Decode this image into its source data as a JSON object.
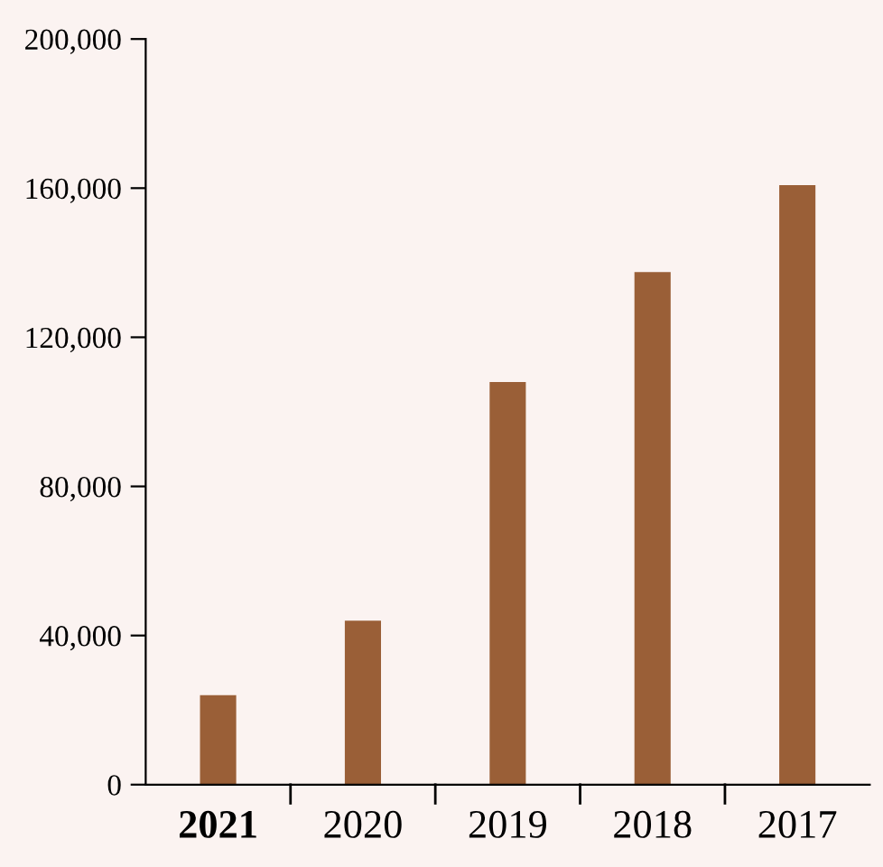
{
  "chart_data": {
    "type": "bar",
    "categories": [
      "2021",
      "2020",
      "2019",
      "2018",
      "2017"
    ],
    "values": [
      24000,
      44000,
      108000,
      137500,
      160800
    ],
    "color": "#9a5f37",
    "ylim": [
      0,
      200000
    ],
    "yticks": [
      {
        "value": 0,
        "label": "0"
      },
      {
        "value": 40000,
        "label": "40,000"
      },
      {
        "value": 80000,
        "label": "80,000"
      },
      {
        "value": 120000,
        "label": "120,000"
      },
      {
        "value": 160000,
        "label": "160,000"
      },
      {
        "value": 200000,
        "label": "200,000"
      }
    ],
    "grid": false,
    "legend": false
  }
}
